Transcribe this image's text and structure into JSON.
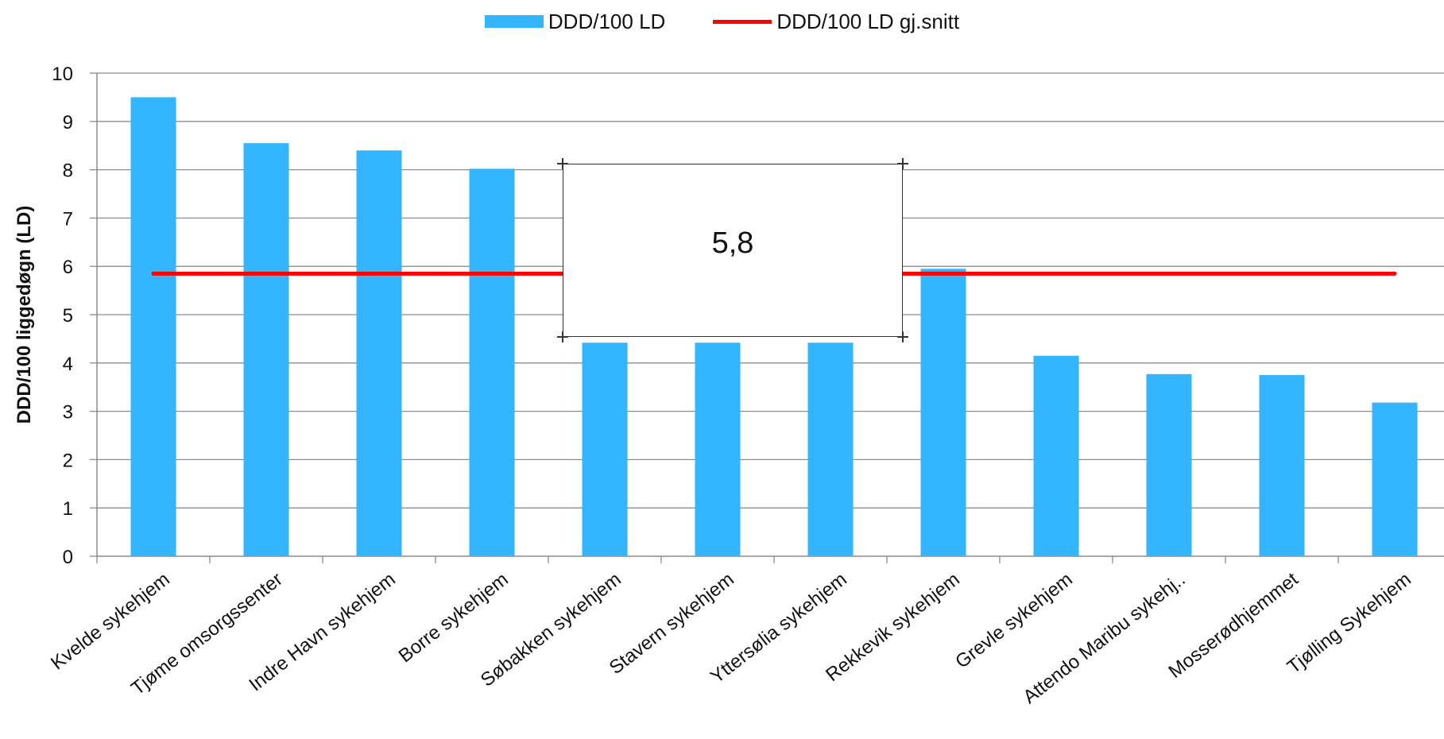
{
  "chart_data": {
    "type": "bar",
    "categories": [
      "Kvelde sykehjem",
      "Tjøme omsorgssenter",
      "Indre Havn sykehjem",
      "Borre sykehjem",
      "Søbakken sykehjem",
      "Stavern sykehjem",
      "Yttersølia sykehjem",
      "Rekkevik sykehjem",
      "Grevle sykehjem",
      "Attendo Maribu sykehj..",
      "Mosserødhjemmet",
      "Tjølling Sykehjem"
    ],
    "series": [
      {
        "name": "DDD/100 LD",
        "values": [
          9.5,
          8.55,
          8.4,
          8.02,
          4.42,
          4.42,
          4.42,
          5.95,
          4.15,
          3.77,
          3.75,
          3.18
        ],
        "color": "#33b5ff"
      },
      {
        "name": "DDD/100 LD gj.snitt",
        "values": [
          5.85,
          5.85,
          5.85,
          5.85,
          5.85,
          5.85,
          5.85,
          5.85,
          5.85,
          5.85,
          5.85,
          5.85
        ],
        "color": "#ff0000",
        "type": "line"
      }
    ],
    "ylabel": "DDD/100 liggedøgn (LD)",
    "xlabel": "",
    "ylim": [
      0,
      10
    ],
    "yticks": [
      "0",
      "1",
      "2",
      "3",
      "4",
      "5",
      "6",
      "7",
      "8",
      "9",
      "10"
    ],
    "grid": true,
    "legend": "top-center",
    "annotation": "5,8"
  }
}
